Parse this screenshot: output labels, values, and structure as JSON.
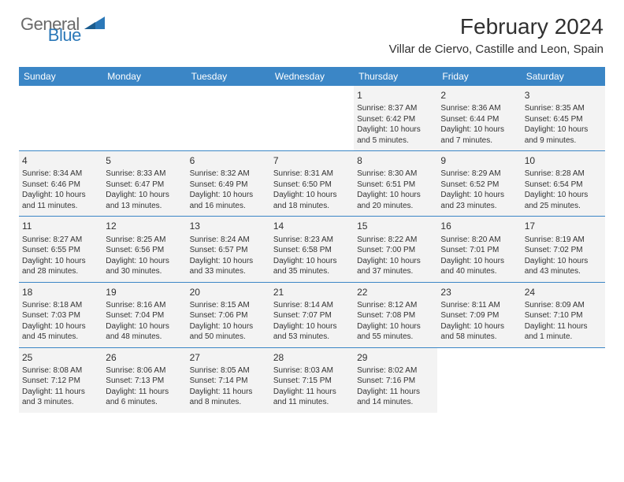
{
  "logo": {
    "text1": "General",
    "text2": "Blue"
  },
  "title": "February 2024",
  "location": "Villar de Ciervo, Castille and Leon, Spain",
  "colors": {
    "header_bg": "#3b86c6",
    "header_text": "#ffffff",
    "cell_bg": "#f3f3f3",
    "border": "#3b86c6",
    "logo_gray": "#6a6a6a",
    "logo_blue": "#2b78b8"
  },
  "days_of_week": [
    "Sunday",
    "Monday",
    "Tuesday",
    "Wednesday",
    "Thursday",
    "Friday",
    "Saturday"
  ],
  "weeks": [
    [
      null,
      null,
      null,
      null,
      {
        "n": "1",
        "sr": "8:37 AM",
        "ss": "6:42 PM",
        "dl": "10 hours and 5 minutes."
      },
      {
        "n": "2",
        "sr": "8:36 AM",
        "ss": "6:44 PM",
        "dl": "10 hours and 7 minutes."
      },
      {
        "n": "3",
        "sr": "8:35 AM",
        "ss": "6:45 PM",
        "dl": "10 hours and 9 minutes."
      }
    ],
    [
      {
        "n": "4",
        "sr": "8:34 AM",
        "ss": "6:46 PM",
        "dl": "10 hours and 11 minutes."
      },
      {
        "n": "5",
        "sr": "8:33 AM",
        "ss": "6:47 PM",
        "dl": "10 hours and 13 minutes."
      },
      {
        "n": "6",
        "sr": "8:32 AM",
        "ss": "6:49 PM",
        "dl": "10 hours and 16 minutes."
      },
      {
        "n": "7",
        "sr": "8:31 AM",
        "ss": "6:50 PM",
        "dl": "10 hours and 18 minutes."
      },
      {
        "n": "8",
        "sr": "8:30 AM",
        "ss": "6:51 PM",
        "dl": "10 hours and 20 minutes."
      },
      {
        "n": "9",
        "sr": "8:29 AM",
        "ss": "6:52 PM",
        "dl": "10 hours and 23 minutes."
      },
      {
        "n": "10",
        "sr": "8:28 AM",
        "ss": "6:54 PM",
        "dl": "10 hours and 25 minutes."
      }
    ],
    [
      {
        "n": "11",
        "sr": "8:27 AM",
        "ss": "6:55 PM",
        "dl": "10 hours and 28 minutes."
      },
      {
        "n": "12",
        "sr": "8:25 AM",
        "ss": "6:56 PM",
        "dl": "10 hours and 30 minutes."
      },
      {
        "n": "13",
        "sr": "8:24 AM",
        "ss": "6:57 PM",
        "dl": "10 hours and 33 minutes."
      },
      {
        "n": "14",
        "sr": "8:23 AM",
        "ss": "6:58 PM",
        "dl": "10 hours and 35 minutes."
      },
      {
        "n": "15",
        "sr": "8:22 AM",
        "ss": "7:00 PM",
        "dl": "10 hours and 37 minutes."
      },
      {
        "n": "16",
        "sr": "8:20 AM",
        "ss": "7:01 PM",
        "dl": "10 hours and 40 minutes."
      },
      {
        "n": "17",
        "sr": "8:19 AM",
        "ss": "7:02 PM",
        "dl": "10 hours and 43 minutes."
      }
    ],
    [
      {
        "n": "18",
        "sr": "8:18 AM",
        "ss": "7:03 PM",
        "dl": "10 hours and 45 minutes."
      },
      {
        "n": "19",
        "sr": "8:16 AM",
        "ss": "7:04 PM",
        "dl": "10 hours and 48 minutes."
      },
      {
        "n": "20",
        "sr": "8:15 AM",
        "ss": "7:06 PM",
        "dl": "10 hours and 50 minutes."
      },
      {
        "n": "21",
        "sr": "8:14 AM",
        "ss": "7:07 PM",
        "dl": "10 hours and 53 minutes."
      },
      {
        "n": "22",
        "sr": "8:12 AM",
        "ss": "7:08 PM",
        "dl": "10 hours and 55 minutes."
      },
      {
        "n": "23",
        "sr": "8:11 AM",
        "ss": "7:09 PM",
        "dl": "10 hours and 58 minutes."
      },
      {
        "n": "24",
        "sr": "8:09 AM",
        "ss": "7:10 PM",
        "dl": "11 hours and 1 minute."
      }
    ],
    [
      {
        "n": "25",
        "sr": "8:08 AM",
        "ss": "7:12 PM",
        "dl": "11 hours and 3 minutes."
      },
      {
        "n": "26",
        "sr": "8:06 AM",
        "ss": "7:13 PM",
        "dl": "11 hours and 6 minutes."
      },
      {
        "n": "27",
        "sr": "8:05 AM",
        "ss": "7:14 PM",
        "dl": "11 hours and 8 minutes."
      },
      {
        "n": "28",
        "sr": "8:03 AM",
        "ss": "7:15 PM",
        "dl": "11 hours and 11 minutes."
      },
      {
        "n": "29",
        "sr": "8:02 AM",
        "ss": "7:16 PM",
        "dl": "11 hours and 14 minutes."
      },
      null,
      null
    ]
  ],
  "labels": {
    "sunrise": "Sunrise: ",
    "sunset": "Sunset: ",
    "daylight": "Daylight: "
  }
}
